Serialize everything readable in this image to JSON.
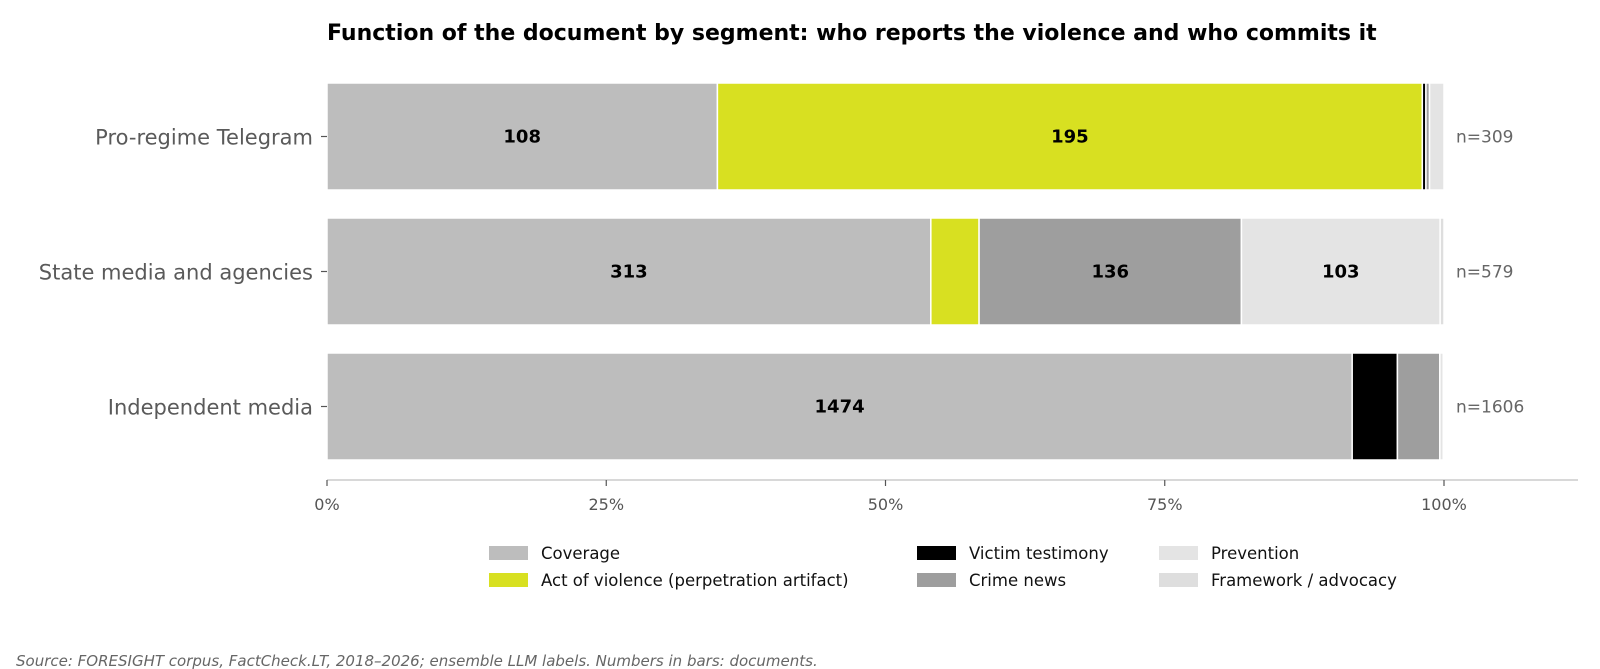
{
  "chart_data": {
    "type": "bar",
    "orientation": "horizontal",
    "stacked": true,
    "normalized": true,
    "title": "Function of the document by segment: who reports the violence and who commits it",
    "categories": [
      "Pro-regime Telegram",
      "State media and agencies",
      "Independent media"
    ],
    "totals_labels": [
      "n=309",
      "n=579",
      "n=1606"
    ],
    "totals": [
      309,
      579,
      1606
    ],
    "xlim": [
      0,
      1.12
    ],
    "x_ticks": [
      0,
      0.25,
      0.5,
      0.75,
      1.0
    ],
    "x_tick_labels": [
      "0%",
      "25%",
      "50%",
      "75%",
      "100%"
    ],
    "series": [
      {
        "name": "Coverage",
        "color": "#bdbdbd",
        "values": [
          108,
          313,
          1474
        ],
        "labels": [
          "108",
          "313",
          "1474"
        ]
      },
      {
        "name": "Act of violence (perpetration artifact)",
        "color": "#d8e021",
        "values": [
          195,
          25,
          0
        ],
        "labels": [
          "195",
          "",
          ""
        ]
      },
      {
        "name": "Victim testimony",
        "color": "#000000",
        "values": [
          1,
          0,
          65
        ],
        "labels": [
          "",
          "",
          ""
        ]
      },
      {
        "name": "Crime news",
        "color": "#9e9e9e",
        "values": [
          1,
          136,
          61
        ],
        "labels": [
          "",
          "136",
          ""
        ]
      },
      {
        "name": "Prevention",
        "color": "#e4e4e4",
        "values": [
          4,
          103,
          5
        ],
        "labels": [
          "",
          "103",
          ""
        ]
      },
      {
        "name": "Framework / advocacy",
        "color": "#dedede",
        "values": [
          0,
          2,
          1
        ],
        "labels": [
          "",
          "",
          ""
        ]
      }
    ],
    "legend_position": "bottom-center",
    "source_note": "Source: FORESIGHT corpus, FactCheck.LT, 2018–2026; ensemble LLM labels. Numbers in bars: documents."
  }
}
